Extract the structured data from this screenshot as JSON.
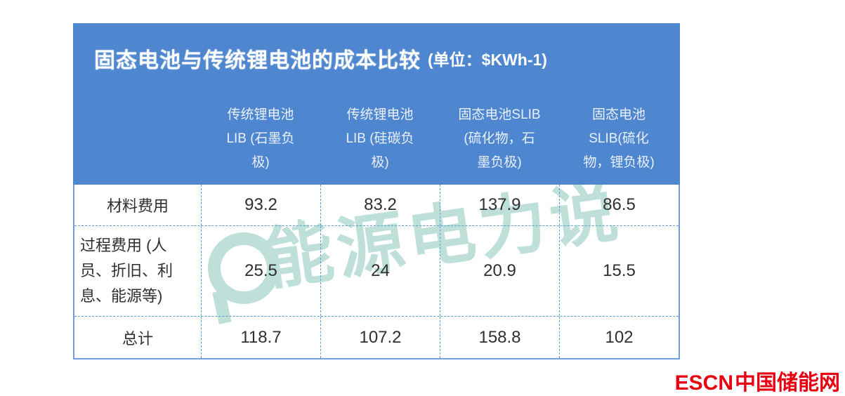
{
  "strings": {
    "title_main": "固态电池与传统锂电池的成本比较",
    "title_unit": "(单位：$KWh-1)",
    "column_headers": [
      "传统锂电池\nLIB (石墨负\n极)",
      "传统锂电池\nLIB (硅碳负\n极)",
      "固态电池SLIB\n(硫化物，石\n墨负极)",
      "固态电池\nSLIB(硫化\n物，锂负极)"
    ],
    "row_labels": [
      "材料费用",
      "过程费用 (人\n员、折旧、利\n息、能源等)",
      "总计"
    ],
    "watermark_text": "能源电力说",
    "watermark_plus": "+",
    "brand_escn": "ESCN",
    "brand_site": "中国储能网"
  },
  "chart_data": {
    "type": "table",
    "title": "固态电池与传统锂电池的成本比较",
    "unit": "$KWh-1",
    "columns": [
      "传统锂电池LIB (石墨负极)",
      "传统锂电池LIB (硅碳负极)",
      "固态电池SLIB (硫化物，石墨负极)",
      "固态电池SLIB (硫化物，锂负极)"
    ],
    "rows": [
      {
        "label": "材料费用",
        "values": [
          93.2,
          83.2,
          137.9,
          86.5
        ]
      },
      {
        "label": "过程费用 (人员、折旧、利息、能源等)",
        "values": [
          25.5,
          24,
          20.9,
          15.5
        ]
      },
      {
        "label": "总计",
        "values": [
          118.7,
          107.2,
          158.8,
          102
        ]
      }
    ]
  },
  "colors": {
    "header_blue": "#4e86d0",
    "border_blue": "#5b9bd5",
    "watermark_teal": "#bfe0d8",
    "brand_red": "#e60012",
    "body_text": "#2f2f2f"
  }
}
